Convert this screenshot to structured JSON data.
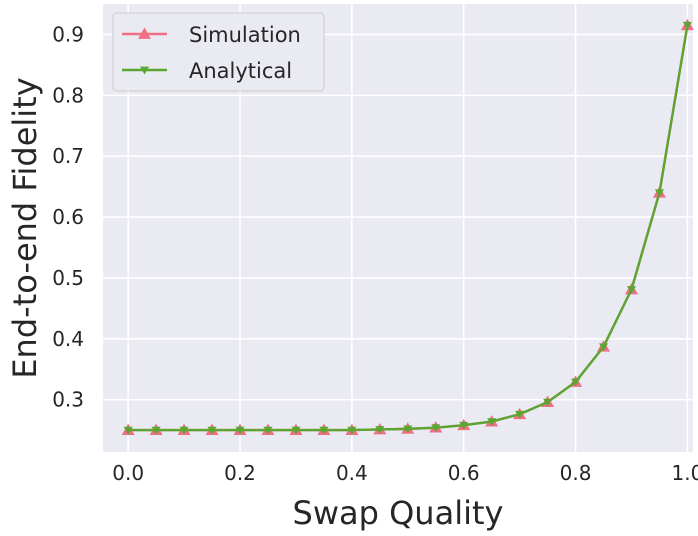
{
  "chart_data": {
    "type": "line",
    "xlabel": "Swap Quality",
    "ylabel": "End-to-end Fidelity",
    "xlim": [
      -0.045,
      1.01
    ],
    "ylim": [
      0.214,
      0.95
    ],
    "x_ticks": [
      "0.0",
      "0.2",
      "0.4",
      "0.6",
      "0.8",
      "1.0"
    ],
    "x_tick_values": [
      0.0,
      0.2,
      0.4,
      0.6,
      0.8,
      1.0
    ],
    "y_ticks": [
      "0.3",
      "0.4",
      "0.5",
      "0.6",
      "0.7",
      "0.8",
      "0.9"
    ],
    "y_tick_values": [
      0.3,
      0.4,
      0.5,
      0.6,
      0.7,
      0.8,
      0.9
    ],
    "grid": true,
    "legend_position": "top-left",
    "x": [
      0.0,
      0.05,
      0.1,
      0.15,
      0.2,
      0.25,
      0.3,
      0.35,
      0.4,
      0.45,
      0.5,
      0.55,
      0.6,
      0.65,
      0.7,
      0.75,
      0.8,
      0.85,
      0.9,
      0.95,
      1.0
    ],
    "series": [
      {
        "name": "Simulation",
        "color": "#f07083",
        "marker": "triangle-up",
        "values": [
          0.25,
          0.25,
          0.25,
          0.25,
          0.25,
          0.25,
          0.25,
          0.25,
          0.25,
          0.251,
          0.252,
          0.254,
          0.258,
          0.264,
          0.276,
          0.296,
          0.329,
          0.387,
          0.481,
          0.64,
          0.915
        ]
      },
      {
        "name": "Analytical",
        "color": "#5aa631",
        "marker": "triangle-down",
        "values": [
          0.25,
          0.25,
          0.25,
          0.25,
          0.25,
          0.25,
          0.25,
          0.25,
          0.25,
          0.251,
          0.252,
          0.254,
          0.258,
          0.264,
          0.276,
          0.296,
          0.329,
          0.387,
          0.481,
          0.64,
          0.915
        ]
      }
    ],
    "colors": {
      "plot_background": "#eaeaf2",
      "grid": "#ffffff",
      "text": "#262626"
    }
  }
}
